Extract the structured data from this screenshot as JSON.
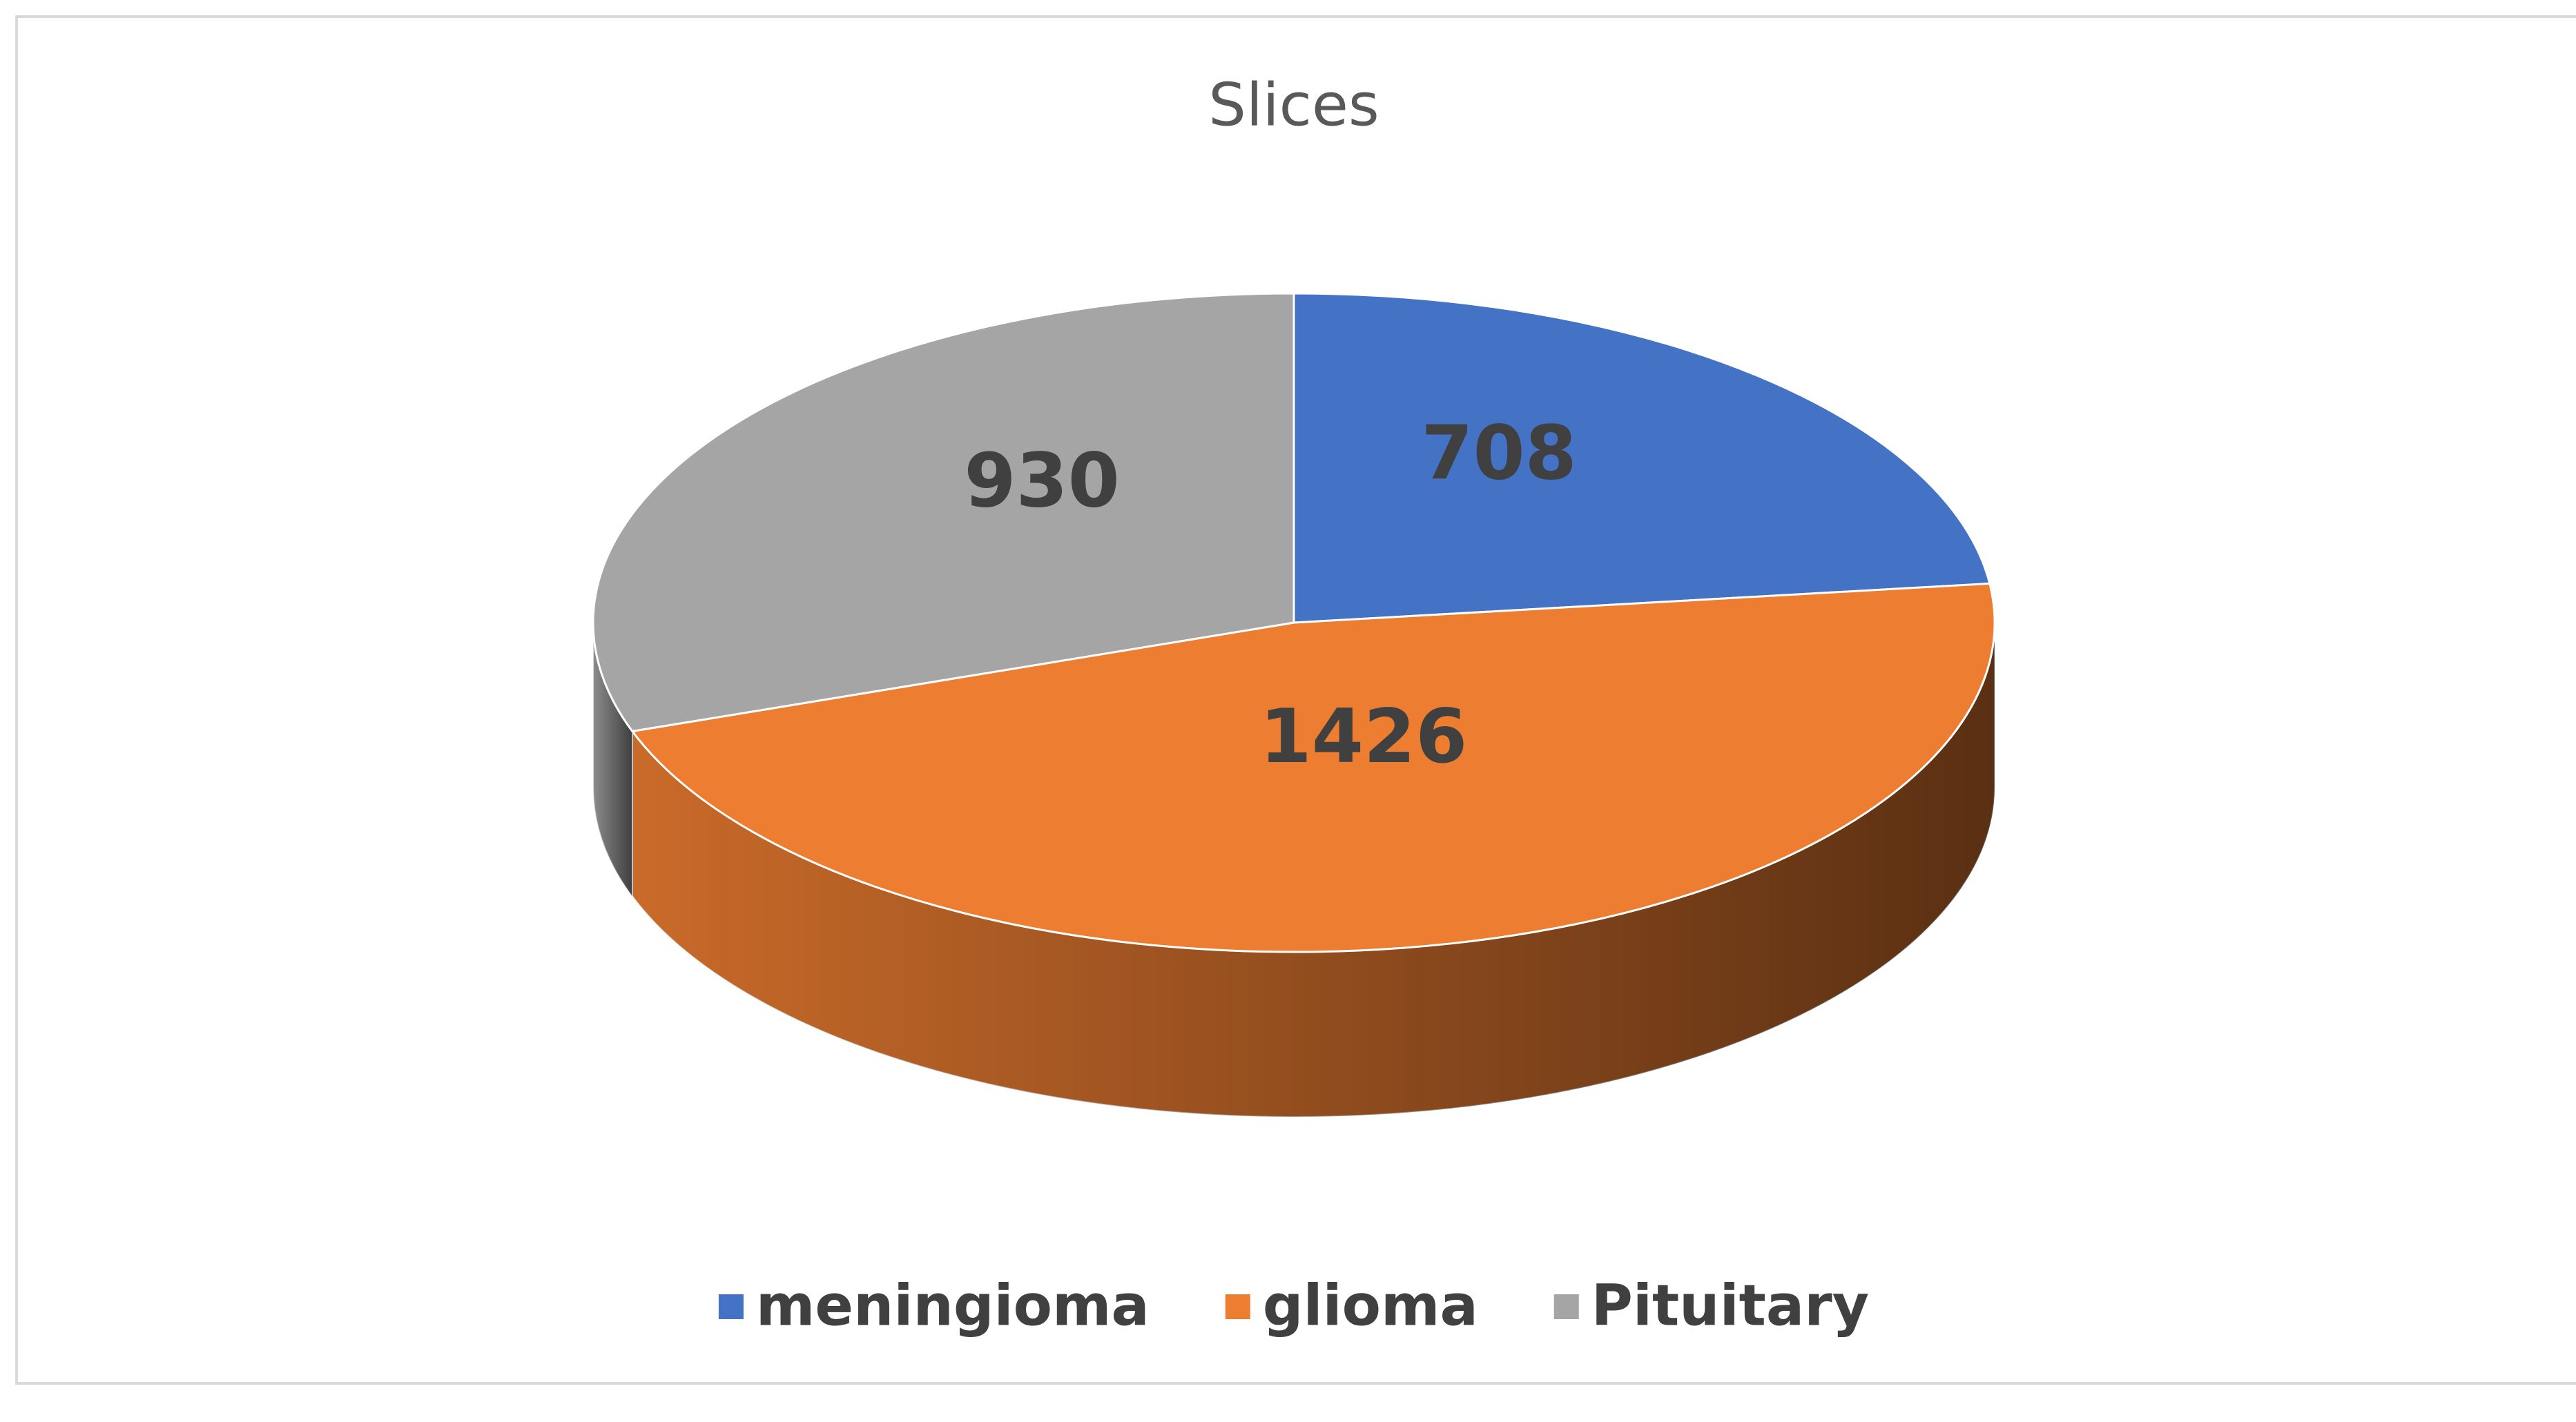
{
  "chart_data": {
    "type": "pie3d",
    "title": "Slices",
    "categories": [
      "meningioma",
      "glioma",
      "Pituitary"
    ],
    "values": [
      708,
      1426,
      930
    ],
    "colors": [
      "#4472c4",
      "#ed7d31",
      "#a5a5a5"
    ],
    "legend": "bottom"
  }
}
